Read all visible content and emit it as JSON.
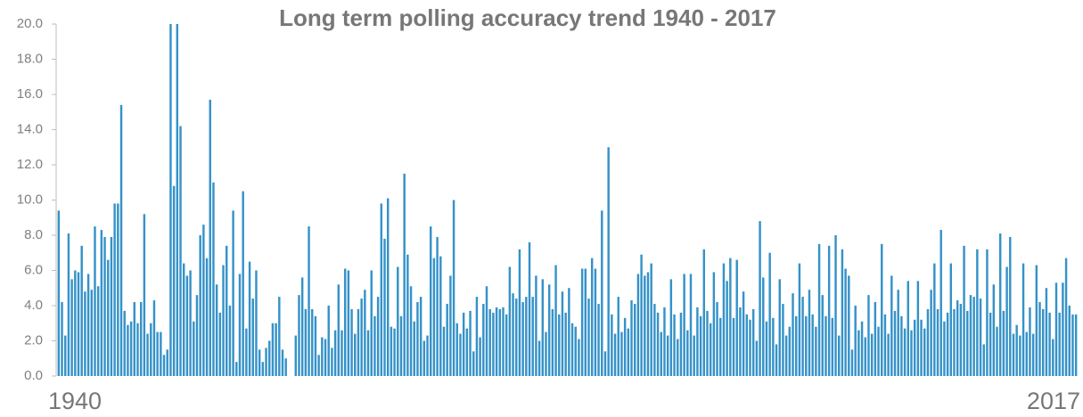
{
  "chart_data": {
    "type": "bar",
    "title": "Long term polling accuracy trend 1940 - 2017",
    "color": "#3592c8",
    "ylim": [
      0,
      20
    ],
    "yticks": [
      {
        "value": 0,
        "label": "0.0"
      },
      {
        "value": 2,
        "label": "2.0"
      },
      {
        "value": 4,
        "label": "4.0"
      },
      {
        "value": 6,
        "label": "6.0"
      },
      {
        "value": 8,
        "label": "8.0"
      },
      {
        "value": 10,
        "label": "10.0"
      },
      {
        "value": 12,
        "label": "12.0"
      },
      {
        "value": 14,
        "label": "14.0"
      },
      {
        "value": 16,
        "label": "16.0"
      },
      {
        "value": 18,
        "label": "18.0"
      },
      {
        "value": 20,
        "label": "20.0"
      }
    ],
    "categories": [
      "1940",
      null,
      null,
      null,
      null,
      null,
      null,
      null,
      null,
      null,
      null,
      null,
      null,
      null,
      null,
      null,
      null,
      null,
      null,
      null,
      null,
      null,
      null,
      null,
      null,
      null,
      null,
      null,
      null,
      null,
      null,
      null,
      null,
      null,
      null,
      null,
      null,
      null,
      null,
      null,
      null,
      null,
      null,
      null,
      null,
      null,
      null,
      null,
      null,
      null,
      null,
      null,
      null,
      null,
      null,
      null,
      null,
      null,
      null,
      null,
      null,
      null,
      null,
      null,
      null,
      null,
      null,
      null,
      null,
      null,
      null,
      null,
      null,
      null,
      null,
      null,
      null,
      null,
      null,
      null,
      null,
      null,
      null,
      null,
      null,
      null,
      null,
      null,
      null,
      null,
      null,
      null,
      null,
      null,
      null,
      null,
      null,
      null,
      null,
      null,
      null,
      null,
      null,
      null,
      null,
      null,
      null,
      null,
      null,
      null,
      null,
      null,
      null,
      null,
      null,
      null,
      null,
      null,
      null,
      null,
      null,
      null,
      null,
      null,
      null,
      null,
      null,
      null,
      null,
      null,
      null,
      null,
      null,
      null,
      null,
      null,
      null,
      null,
      null,
      null,
      null,
      null,
      null,
      null,
      null,
      null,
      null,
      null,
      null,
      null,
      null,
      null,
      null,
      null,
      null,
      null,
      null,
      null,
      null,
      null,
      null,
      null,
      null,
      null,
      null,
      null,
      null,
      null,
      null,
      null,
      null,
      null,
      null,
      null,
      null,
      null,
      null,
      null,
      null,
      null,
      null,
      null,
      null,
      null,
      null,
      null,
      null,
      null,
      null,
      null,
      null,
      null,
      null,
      null,
      null,
      null,
      null,
      null,
      null,
      null,
      null,
      null,
      null,
      null,
      null,
      null,
      null,
      null,
      null,
      null,
      null,
      null,
      null,
      null,
      null,
      null,
      null,
      null,
      null,
      null,
      null,
      null,
      null,
      null,
      null,
      null,
      null,
      null,
      null,
      null,
      null,
      null,
      null,
      null,
      null,
      null,
      null,
      null,
      null,
      null,
      null,
      null,
      null,
      null,
      null,
      null,
      null,
      null,
      null,
      null,
      null,
      null,
      null,
      null,
      null,
      null,
      null,
      null,
      null,
      null,
      null,
      null,
      null,
      null,
      null,
      null,
      null,
      null,
      null,
      null,
      null,
      null,
      null,
      null,
      null,
      null,
      null,
      null,
      null,
      null,
      null,
      null,
      null,
      null,
      null,
      null,
      null,
      null,
      null,
      null,
      null,
      null,
      null,
      null,
      null,
      null,
      null,
      null,
      null,
      null,
      null,
      null,
      null,
      null,
      null,
      null,
      null,
      null,
      null,
      "2017"
    ],
    "values": [
      9.4,
      4.2,
      2.3,
      8.1,
      5.5,
      6.0,
      5.9,
      7.4,
      4.8,
      5.8,
      4.9,
      8.5,
      5.1,
      8.3,
      7.9,
      6.6,
      7.9,
      9.8,
      9.8,
      15.4,
      3.7,
      2.9,
      3.1,
      4.2,
      3.0,
      4.2,
      9.2,
      2.4,
      3.0,
      4.3,
      2.5,
      2.5,
      1.2,
      1.5,
      20.0,
      10.8,
      20.0,
      14.2,
      6.4,
      5.7,
      6.0,
      3.1,
      4.6,
      8.0,
      8.6,
      6.7,
      15.7,
      11.0,
      5.2,
      3.6,
      6.3,
      7.4,
      4.0,
      9.4,
      0.8,
      5.8,
      10.5,
      2.7,
      6.5,
      4.4,
      6.0,
      1.5,
      0.8,
      1.6,
      2.0,
      3.0,
      3.0,
      4.5,
      1.5,
      1.0,
      0,
      0,
      2.3,
      4.6,
      5.6,
      3.8,
      8.5,
      3.8,
      3.4,
      1.2,
      2.2,
      2.1,
      4.0,
      1.6,
      2.6,
      5.2,
      2.6,
      6.1,
      6.0,
      3.8,
      2.4,
      3.8,
      4.4,
      4.9,
      2.6,
      6.0,
      3.4,
      4.5,
      9.8,
      7.8,
      10.1,
      2.8,
      2.7,
      6.2,
      3.4,
      11.5,
      6.9,
      5.1,
      3.1,
      4.2,
      4.5,
      2.0,
      2.3,
      8.5,
      6.7,
      7.9,
      6.8,
      2.8,
      4.1,
      5.7,
      10.0,
      3.0,
      2.4,
      3.6,
      2.7,
      3.7,
      1.4,
      4.5,
      2.2,
      4.1,
      5.1,
      3.8,
      3.6,
      3.9,
      3.8,
      3.9,
      3.5,
      6.2,
      4.7,
      4.4,
      7.2,
      4.2,
      4.5,
      7.6,
      4.5,
      5.7,
      2.0,
      5.5,
      2.5,
      5.2,
      3.8,
      6.3,
      3.5,
      4.8,
      3.6,
      5.0,
      3.0,
      2.8,
      2.1,
      6.1,
      6.1,
      4.4,
      6.7,
      6.1,
      4.1,
      9.4,
      1.4,
      13.0,
      3.5,
      2.4,
      4.5,
      2.5,
      3.3,
      2.7,
      4.3,
      4.1,
      5.8,
      6.9,
      5.7,
      5.9,
      6.4,
      4.1,
      3.6,
      2.5,
      3.9,
      2.3,
      5.5,
      3.5,
      2.1,
      3.6,
      5.8,
      2.6,
      5.8,
      2.3,
      3.9,
      3.4,
      7.2,
      3.7,
      3.0,
      5.9,
      4.2,
      3.3,
      6.4,
      5.4,
      6.7,
      3.3,
      6.6,
      3.9,
      4.8,
      3.5,
      3.2,
      3.8,
      2.0,
      8.8,
      5.6,
      3.1,
      7.0,
      3.3,
      1.8,
      5.5,
      4.1,
      2.3,
      2.8,
      4.7,
      3.4,
      6.4,
      4.5,
      3.4,
      4.9,
      3.5,
      2.8,
      7.5,
      4.6,
      3.4,
      7.4,
      3.3,
      8.0,
      2.3,
      7.2,
      6.1,
      5.7,
      1.5,
      4.0,
      2.6,
      3.1,
      2.2,
      4.6,
      2.4,
      4.2,
      2.8,
      7.5,
      3.5,
      2.4,
      5.7,
      3.7,
      4.9,
      3.4,
      2.7,
      5.4,
      2.6,
      3.2,
      5.4,
      3.2,
      2.7,
      3.8,
      4.9,
      6.4,
      3.8,
      8.3,
      3.1,
      3.6,
      6.4,
      3.8,
      4.3,
      4.1,
      7.4,
      3.7,
      4.6,
      4.5,
      7.2,
      4.4,
      1.8,
      7.2,
      3.6,
      5.2,
      2.8,
      8.1,
      3.7,
      6.2,
      7.9,
      2.4,
      2.9,
      2.3,
      6.4,
      2.5,
      3.9,
      2.4,
      6.3,
      4.2,
      3.8,
      5.0,
      3.6,
      2.1,
      5.3,
      3.6,
      5.3,
      6.7,
      4.0,
      3.5,
      3.5
    ]
  }
}
